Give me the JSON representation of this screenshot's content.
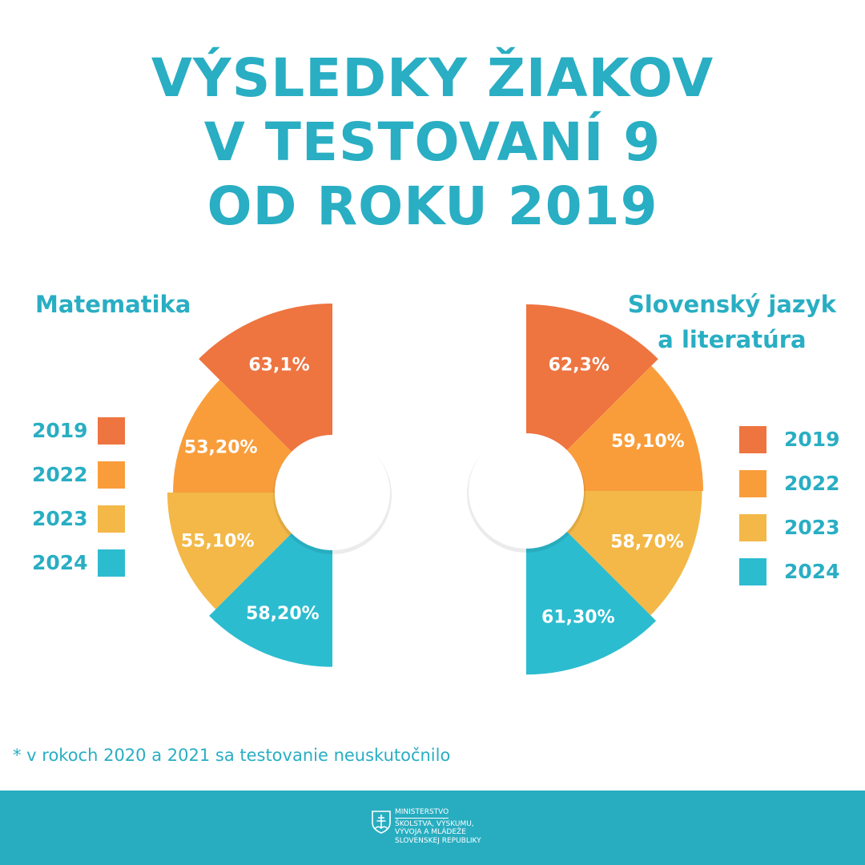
{
  "title": {
    "line1": "VÝSLEDKY ŽIAKOV",
    "line2": "V TESTOVANÍ 9",
    "line3": "OD ROKU 2019"
  },
  "colors": {
    "accent": "#29aec3",
    "year_2019": "#ee7440",
    "year_2022": "#f99d3b",
    "year_2023": "#f3b848",
    "year_2024": "#2cbcd0",
    "footer": "#28adc0"
  },
  "legend": [
    "2019",
    "2022",
    "2023",
    "2024"
  ],
  "chart_data": [
    {
      "type": "pie",
      "title": "Matematika",
      "layout": "half-donut, left half, radius proportional to value",
      "categories": [
        "2019",
        "2022",
        "2023",
        "2024"
      ],
      "values": [
        63.1,
        53.2,
        55.1,
        58.2
      ],
      "labels": [
        "63,1%",
        "53,20%",
        "55,10%",
        "58,20%"
      ],
      "legend_position": "left"
    },
    {
      "type": "pie",
      "title": "Slovenský jazyk a literatúra",
      "layout": "half-donut, right half, radius proportional to value",
      "categories": [
        "2019",
        "2022",
        "2023",
        "2024"
      ],
      "values": [
        62.3,
        59.1,
        58.7,
        61.3
      ],
      "labels": [
        "62,3%",
        "59,10%",
        "58,70%",
        "61,30%"
      ],
      "legend_position": "right"
    }
  ],
  "chart_titles": {
    "left": "Matematika",
    "right_line1": "Slovenský jazyk",
    "right_line2": "a literatúra"
  },
  "footnote": "*  v rokoch 2020 a 2021 sa testovanie neuskutočnilo",
  "footer": {
    "ministry_line1": "MINISTERSTVO",
    "ministry_line2": "ŠKOLSTVA, VÝSKUMU,",
    "ministry_line3": "VÝVOJA A MLÁDEŽE",
    "ministry_line4": "SLOVENSKEJ REPUBLIKY"
  }
}
